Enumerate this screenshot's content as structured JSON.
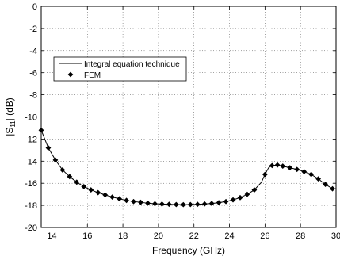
{
  "chart_data": {
    "type": "line",
    "title": "",
    "xlabel": "Frequency (GHz)",
    "ylabel_main": "|S",
    "ylabel_sub": "11",
    "ylabel_tail": "| (dB)",
    "xlim": [
      13.4,
      30
    ],
    "ylim": [
      -20,
      0
    ],
    "xticks": [
      14,
      16,
      18,
      20,
      22,
      24,
      26,
      28,
      30
    ],
    "yticks": [
      0,
      -2,
      -4,
      -6,
      -8,
      -10,
      -12,
      -14,
      -16,
      -18,
      -20
    ],
    "grid": true,
    "legend_position": "upper-left",
    "series": [
      {
        "name": "Integral equation technique",
        "style": "line",
        "x": [
          13.4,
          13.8,
          14.2,
          14.6,
          15.0,
          15.4,
          15.8,
          16.2,
          16.6,
          17.0,
          17.4,
          17.8,
          18.2,
          18.6,
          19.0,
          19.4,
          19.8,
          20.2,
          20.6,
          21.0,
          21.4,
          21.8,
          22.2,
          22.6,
          23.0,
          23.4,
          23.8,
          24.2,
          24.6,
          25.0,
          25.4,
          25.8,
          26.0,
          26.2,
          26.4,
          26.7,
          27.0,
          27.4,
          27.8,
          28.2,
          28.6,
          29.0,
          29.4,
          29.8,
          30.0
        ],
        "y": [
          -11.2,
          -12.8,
          -13.9,
          -14.8,
          -15.4,
          -15.9,
          -16.3,
          -16.6,
          -16.85,
          -17.05,
          -17.25,
          -17.4,
          -17.55,
          -17.65,
          -17.72,
          -17.8,
          -17.85,
          -17.88,
          -17.9,
          -17.92,
          -17.93,
          -17.92,
          -17.9,
          -17.87,
          -17.82,
          -17.75,
          -17.65,
          -17.5,
          -17.3,
          -17.0,
          -16.6,
          -15.9,
          -15.2,
          -14.6,
          -14.4,
          -14.35,
          -14.45,
          -14.6,
          -14.75,
          -14.95,
          -15.2,
          -15.6,
          -16.1,
          -16.5,
          -16.5
        ]
      },
      {
        "name": "FEM",
        "style": "marker",
        "x": [
          13.4,
          13.8,
          14.2,
          14.6,
          15.0,
          15.4,
          15.8,
          16.2,
          16.6,
          17.0,
          17.4,
          17.8,
          18.2,
          18.6,
          19.0,
          19.4,
          19.8,
          20.2,
          20.6,
          21.0,
          21.4,
          21.8,
          22.2,
          22.6,
          23.0,
          23.4,
          23.8,
          24.2,
          24.6,
          25.0,
          25.4,
          26.0,
          26.4,
          26.7,
          27.0,
          27.4,
          27.8,
          28.2,
          28.6,
          29.0,
          29.4,
          29.8
        ],
        "y": [
          -11.2,
          -12.8,
          -13.9,
          -14.8,
          -15.4,
          -15.9,
          -16.3,
          -16.6,
          -16.85,
          -17.05,
          -17.25,
          -17.4,
          -17.55,
          -17.65,
          -17.72,
          -17.8,
          -17.85,
          -17.88,
          -17.9,
          -17.92,
          -17.93,
          -17.92,
          -17.9,
          -17.87,
          -17.82,
          -17.75,
          -17.65,
          -17.5,
          -17.3,
          -17.0,
          -16.6,
          -15.2,
          -14.4,
          -14.35,
          -14.45,
          -14.6,
          -14.75,
          -14.95,
          -15.2,
          -15.6,
          -16.1,
          -16.5
        ]
      }
    ]
  }
}
